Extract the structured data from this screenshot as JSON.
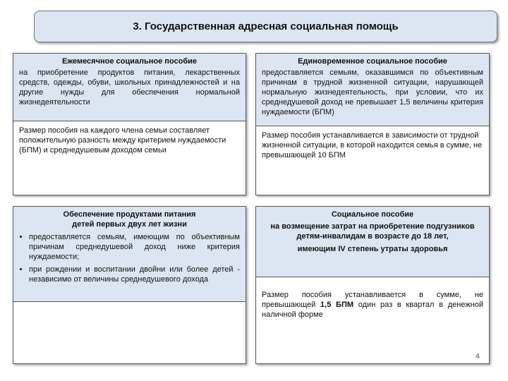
{
  "title": "3. Государственная адресная социальная помощь",
  "panels": [
    {
      "heading": [
        "Ежемесячное социальное пособие"
      ],
      "description": "на приобретение продуктов питания, лекарственных средств, одежды, обуви, школьных принадлежностей и на другие нужды для обеспечения нормальной жизнедеятельности",
      "details": [
        "Размер пособия на каждого члена семьи составляет положительную разность между критерием нуждаемости (БПМ) и среднедушевым доходом семьи"
      ]
    },
    {
      "heading": [
        "Единовременное социальное  пособие"
      ],
      "description": "предоставляется семьям, оказавшимся по объективным причинам в трудной жизненной ситуации, нарушающей нормальную жизнедеятельность, при условии, что их среднедушевой доход не превышает 1,5 величины критерия нуждаемости (БПМ)",
      "details": [
        "Размер пособия устанавливается в зависимости от трудной жизненной ситуации, в которой находится семья в сумме, не превышающей 10 БПМ"
      ]
    },
    {
      "heading": [
        "Обеспечение продуктами питания",
        "детей первых двух лет жизни"
      ],
      "bullets": [
        "предоставляется семьям, имеющим по объективным причинам среднедушевой доход ниже критерия нуждаемости;",
        "при рождении и воспитании двойни или более детей  - независимо от величины среднедушевого дохода"
      ]
    },
    {
      "heading": [
        "Социальное пособие",
        "на возмещение затрат на приобретение подгузников детям-инвалидам в возрасте до 18 лет,",
        "имеющим IV степень утраты здоровья"
      ],
      "details": [
        "Размер пособия устанавливается в сумме, не превышающей ",
        "1,5 БПМ",
        " один раз в квартал в денежной наличной форме"
      ]
    }
  ],
  "page_number": "4"
}
